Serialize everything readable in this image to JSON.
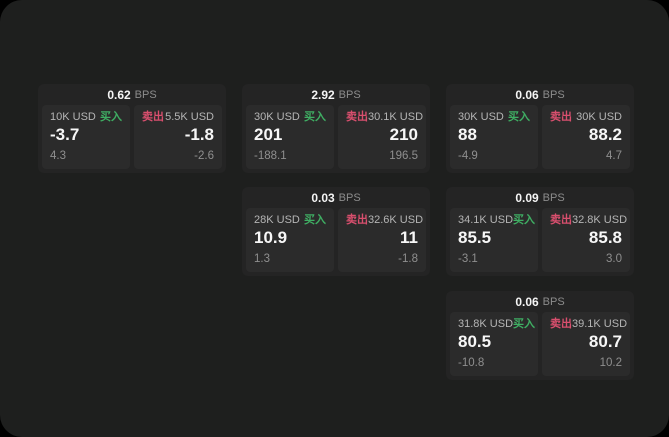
{
  "labels": {
    "bps_unit": "BPS",
    "buy": "买入",
    "sell": "卖出"
  },
  "colors": {
    "buy_green": "#3fae63",
    "sell_red": "#d94f6e",
    "panel_bg": "#2b2b2b",
    "card_bg": "#242424",
    "page_bg": "#1e1f1e"
  },
  "cards": [
    {
      "bps": "0.62",
      "buy": {
        "amount": "10K USD",
        "price": "-3.7",
        "delta": "4.3"
      },
      "sell": {
        "amount": "5.5K USD",
        "price": "-1.8",
        "delta": "-2.6"
      }
    },
    {
      "bps": "2.92",
      "buy": {
        "amount": "30K USD",
        "price": "201",
        "delta": "-188.1"
      },
      "sell": {
        "amount": "30.1K USD",
        "price": "210",
        "delta": "196.5"
      }
    },
    {
      "bps": "0.06",
      "buy": {
        "amount": "30K USD",
        "price": "88",
        "delta": "-4.9"
      },
      "sell": {
        "amount": "30K USD",
        "price": "88.2",
        "delta": "4.7"
      }
    },
    {
      "bps": "0.03",
      "buy": {
        "amount": "28K USD",
        "price": "10.9",
        "delta": "1.3"
      },
      "sell": {
        "amount": "32.6K USD",
        "price": "11",
        "delta": "-1.8"
      }
    },
    {
      "bps": "0.09",
      "buy": {
        "amount": "34.1K USD",
        "price": "85.5",
        "delta": "-3.1"
      },
      "sell": {
        "amount": "32.8K USD",
        "price": "85.8",
        "delta": "3.0"
      }
    },
    {
      "bps": "0.06",
      "buy": {
        "amount": "31.8K USD",
        "price": "80.5",
        "delta": "-10.8"
      },
      "sell": {
        "amount": "39.1K USD",
        "price": "80.7",
        "delta": "10.2"
      }
    }
  ]
}
